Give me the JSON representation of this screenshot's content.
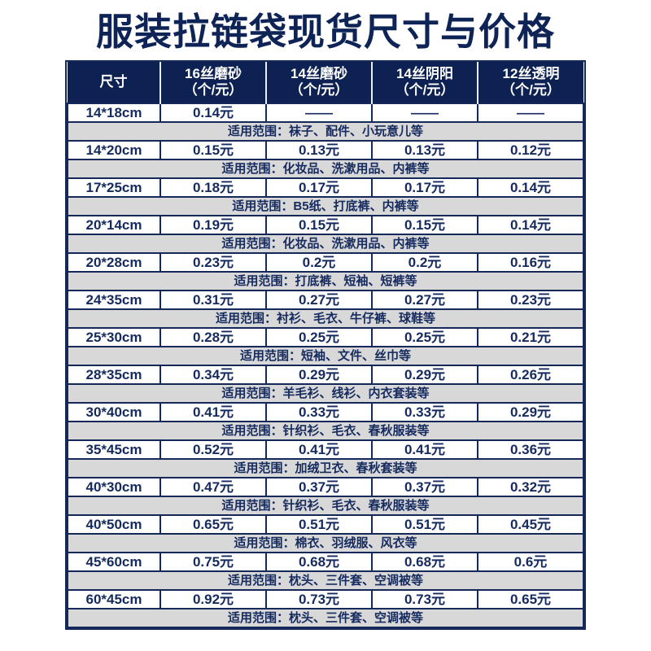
{
  "page": {
    "title": "服装拉链袋现货尺寸与价格"
  },
  "colors": {
    "header_bg": "#0d2152",
    "text_navy": "#152a5e",
    "border_navy": "#14285a",
    "range_row_gray": "#d8d8d8",
    "header_text": "#ffffff",
    "page_bg": "#ffffff"
  },
  "table": {
    "columns": [
      {
        "label": "尺寸",
        "unit": ""
      },
      {
        "label": "16丝磨砂",
        "unit": "（个/元）"
      },
      {
        "label": "14丝磨砂",
        "unit": "（个/元）"
      },
      {
        "label": "14丝阴阳",
        "unit": "（个/元）"
      },
      {
        "label": "12丝透明",
        "unit": "（个/元）"
      }
    ],
    "rows": [
      {
        "size": "14*18cm",
        "prices": [
          "0.14元",
          "——",
          "——",
          "——"
        ],
        "range": "适用范围：袜子、配件、小玩意儿等"
      },
      {
        "size": "14*20cm",
        "prices": [
          "0.15元",
          "0.13元",
          "0.13元",
          "0.12元"
        ],
        "range": "适用范围：化妆品、洗漱用品、内裤等"
      },
      {
        "size": "17*25cm",
        "prices": [
          "0.18元",
          "0.17元",
          "0.17元",
          "0.14元"
        ],
        "range": "适用范围：B5纸、打底裤、内裤等"
      },
      {
        "size": "20*14cm",
        "prices": [
          "0.19元",
          "0.15元",
          "0.15元",
          "0.14元"
        ],
        "range": "适用范围：化妆品、洗漱用品、内裤等"
      },
      {
        "size": "20*28cm",
        "prices": [
          "0.23元",
          "0.2元",
          "0.2元",
          "0.16元"
        ],
        "range": "适用范围：打底裤、短袖、短裤等"
      },
      {
        "size": "24*35cm",
        "prices": [
          "0.31元",
          "0.27元",
          "0.27元",
          "0.23元"
        ],
        "range": "适用范围：衬衫、毛衣、牛仔裤、球鞋等"
      },
      {
        "size": "25*30cm",
        "prices": [
          "0.28元",
          "0.25元",
          "0.25元",
          "0.21元"
        ],
        "range": "适用范围：短袖、文件、丝巾等"
      },
      {
        "size": "28*35cm",
        "prices": [
          "0.34元",
          "0.29元",
          "0.29元",
          "0.26元"
        ],
        "range": "适用范围：羊毛衫、线衫、内衣套装等"
      },
      {
        "size": "30*40cm",
        "prices": [
          "0.41元",
          "0.33元",
          "0.33元",
          "0.29元"
        ],
        "range": "适用范围：针织衫、毛衣、春秋服装等"
      },
      {
        "size": "35*45cm",
        "prices": [
          "0.52元",
          "0.41元",
          "0.41元",
          "0.36元"
        ],
        "range": "适用范围：加绒卫衣、春秋套装等"
      },
      {
        "size": "40*30cm",
        "prices": [
          "0.47元",
          "0.37元",
          "0.37元",
          "0.32元"
        ],
        "range": "适用范围：针织衫、毛衣、春秋服装等"
      },
      {
        "size": "40*50cm",
        "prices": [
          "0.65元",
          "0.51元",
          "0.51元",
          "0.45元"
        ],
        "range": "适用范围：棉衣、羽绒服、风衣等"
      },
      {
        "size": "45*60cm",
        "prices": [
          "0.75元",
          "0.68元",
          "0.68元",
          "0.6元"
        ],
        "range": "适用范围：枕头、三件套、空调被等"
      },
      {
        "size": "60*45cm",
        "prices": [
          "0.92元",
          "0.73元",
          "0.73元",
          "0.65元"
        ],
        "range": "适用范围：枕头、三件套、空调被等"
      }
    ]
  },
  "chart_data": {
    "type": "table",
    "title": "服装拉链袋现货尺寸与价格",
    "columns": [
      "尺寸",
      "16丝磨砂（个/元）",
      "14丝磨砂（个/元）",
      "14丝阴阳（个/元）",
      "12丝透明（个/元）",
      "适用范围"
    ],
    "rows": [
      [
        "14*18cm",
        0.14,
        null,
        null,
        null,
        "袜子、配件、小玩意儿等"
      ],
      [
        "14*20cm",
        0.15,
        0.13,
        0.13,
        0.12,
        "化妆品、洗漱用品、内裤等"
      ],
      [
        "17*25cm",
        0.18,
        0.17,
        0.17,
        0.14,
        "B5纸、打底裤、内裤等"
      ],
      [
        "20*14cm",
        0.19,
        0.15,
        0.15,
        0.14,
        "化妆品、洗漱用品、内裤等"
      ],
      [
        "20*28cm",
        0.23,
        0.2,
        0.2,
        0.16,
        "打底裤、短袖、短裤等"
      ],
      [
        "24*35cm",
        0.31,
        0.27,
        0.27,
        0.23,
        "衬衫、毛衣、牛仔裤、球鞋等"
      ],
      [
        "25*30cm",
        0.28,
        0.25,
        0.25,
        0.21,
        "短袖、文件、丝巾等"
      ],
      [
        "28*35cm",
        0.34,
        0.29,
        0.29,
        0.26,
        "羊毛衫、线衫、内衣套装等"
      ],
      [
        "30*40cm",
        0.41,
        0.33,
        0.33,
        0.29,
        "针织衫、毛衣、春秋服装等"
      ],
      [
        "35*45cm",
        0.52,
        0.41,
        0.41,
        0.36,
        "加绒卫衣、春秋套装等"
      ],
      [
        "40*30cm",
        0.47,
        0.37,
        0.37,
        0.32,
        "针织衫、毛衣、春秋服装等"
      ],
      [
        "40*50cm",
        0.65,
        0.51,
        0.51,
        0.45,
        "棉衣、羽绒服、风衣等"
      ],
      [
        "45*60cm",
        0.75,
        0.68,
        0.68,
        0.6,
        "枕头、三件套、空调被等"
      ],
      [
        "60*45cm",
        0.92,
        0.73,
        0.73,
        0.65,
        "枕头、三件套、空调被等"
      ]
    ]
  }
}
